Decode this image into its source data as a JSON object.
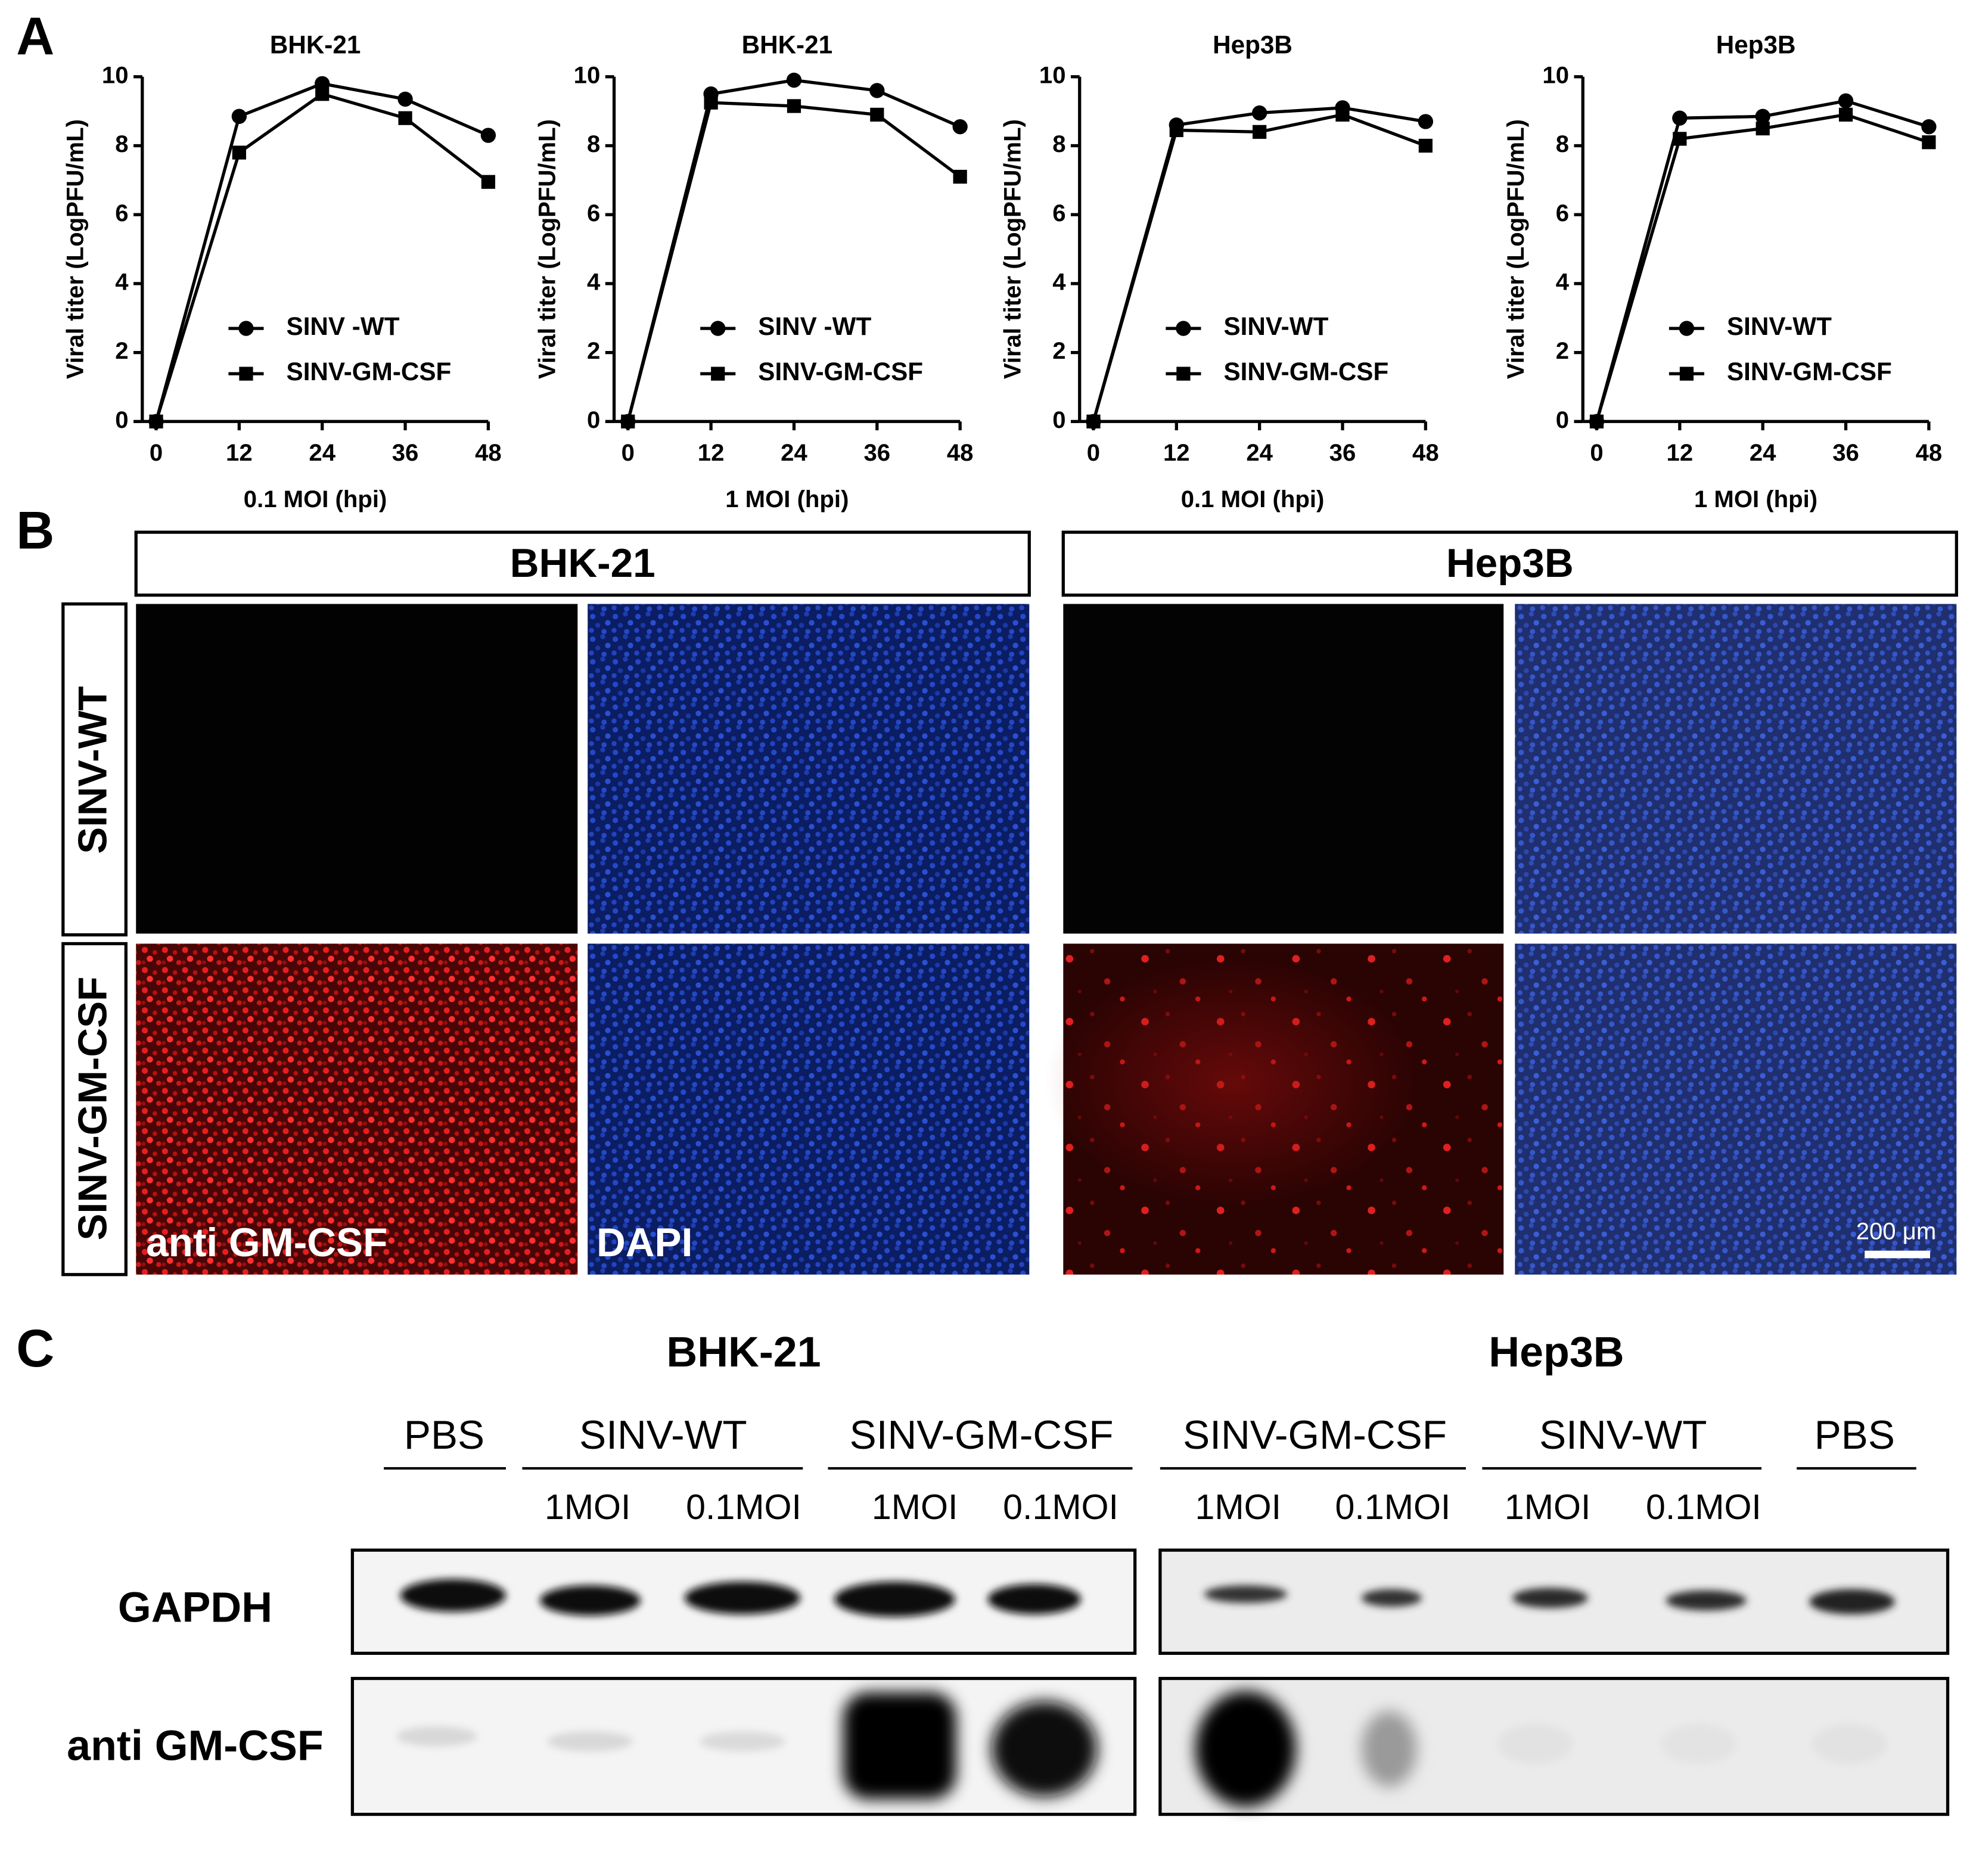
{
  "panel_labels": [
    "A",
    "B",
    "C"
  ],
  "chart_data": [
    {
      "type": "line",
      "title": "BHK-21",
      "xlabel": "0.1 MOI (hpi)",
      "ylabel": "Viral titer (LogPFU/mL)",
      "x": [
        0,
        12,
        24,
        36,
        48
      ],
      "xlim": [
        -2,
        48
      ],
      "xticks": [
        0,
        12,
        24,
        36,
        48
      ],
      "ylim": [
        0,
        10
      ],
      "yticks": [
        0,
        2,
        4,
        6,
        8,
        10
      ],
      "legend": "lower center",
      "series": [
        {
          "name": "SINV -WT",
          "color": "#000000",
          "marker": "circle",
          "values": [
            0,
            8.85,
            9.8,
            9.35,
            8.3
          ]
        },
        {
          "name": "SINV-GM-CSF",
          "color": "#000000",
          "marker": "square",
          "values": [
            0,
            7.8,
            9.5,
            8.8,
            6.95
          ]
        }
      ]
    },
    {
      "type": "line",
      "title": "BHK-21",
      "xlabel": "1 MOI (hpi)",
      "ylabel": "Viral titer (LogPFU/mL)",
      "x": [
        0,
        12,
        24,
        36,
        48
      ],
      "xlim": [
        -2,
        48
      ],
      "xticks": [
        0,
        12,
        24,
        36,
        48
      ],
      "ylim": [
        0,
        10
      ],
      "yticks": [
        0,
        2,
        4,
        6,
        8,
        10
      ],
      "legend": "lower center",
      "series": [
        {
          "name": "SINV -WT",
          "color": "#000000",
          "marker": "circle",
          "values": [
            0,
            9.5,
            9.9,
            9.6,
            8.55
          ]
        },
        {
          "name": "SINV-GM-CSF",
          "color": "#000000",
          "marker": "square",
          "values": [
            0,
            9.25,
            9.15,
            8.9,
            7.1
          ]
        }
      ]
    },
    {
      "type": "line",
      "title": "Hep3B",
      "xlabel": "0.1 MOI (hpi)",
      "ylabel": "Viral titer (LogPFU/mL)",
      "x": [
        0,
        12,
        24,
        36,
        48
      ],
      "xlim": [
        -2,
        48
      ],
      "xticks": [
        0,
        12,
        24,
        36,
        48
      ],
      "ylim": [
        0,
        10
      ],
      "yticks": [
        0,
        2,
        4,
        6,
        8,
        10
      ],
      "legend": "lower center",
      "series": [
        {
          "name": "SINV-WT",
          "color": "#000000",
          "marker": "circle",
          "values": [
            0,
            8.6,
            8.95,
            9.1,
            8.7
          ]
        },
        {
          "name": "SINV-GM-CSF",
          "color": "#000000",
          "marker": "square",
          "values": [
            0,
            8.45,
            8.4,
            8.9,
            8.0
          ]
        }
      ]
    },
    {
      "type": "line",
      "title": "Hep3B",
      "xlabel": "1 MOI (hpi)",
      "ylabel": "Viral titer (LogPFU/mL)",
      "x": [
        0,
        12,
        24,
        36,
        48
      ],
      "xlim": [
        -2,
        48
      ],
      "xticks": [
        0,
        12,
        24,
        36,
        48
      ],
      "ylim": [
        0,
        10
      ],
      "yticks": [
        0,
        2,
        4,
        6,
        8,
        10
      ],
      "legend": "lower center",
      "series": [
        {
          "name": "SINV-WT",
          "color": "#000000",
          "marker": "circle",
          "values": [
            0,
            8.8,
            8.85,
            9.3,
            8.55
          ]
        },
        {
          "name": "SINV-GM-CSF",
          "color": "#000000",
          "marker": "square",
          "values": [
            0,
            8.2,
            8.5,
            8.9,
            8.1
          ]
        }
      ]
    }
  ],
  "panel_b": {
    "columns": [
      "BHK-21",
      "Hep3B"
    ],
    "rows": [
      "SINV-WT",
      "SINV-GM-CSF"
    ],
    "channels": [
      "anti GM-CSF",
      "DAPI"
    ],
    "scale_bar": "200 μm"
  },
  "panel_c": {
    "groups": [
      {
        "title": "BHK-21",
        "conditions": [
          {
            "name": "PBS"
          },
          {
            "name": "SINV-WT",
            "doses": [
              "1MOI",
              "0.1MOI"
            ]
          },
          {
            "name": "SINV-GM-CSF",
            "doses": [
              "1MOI",
              "0.1MOI"
            ]
          }
        ]
      },
      {
        "title": "Hep3B",
        "conditions": [
          {
            "name": "SINV-GM-CSF",
            "doses": [
              "1MOI",
              "0.1MOI"
            ]
          },
          {
            "name": "SINV-WT",
            "doses": [
              "1MOI",
              "0.1MOI"
            ]
          },
          {
            "name": "PBS"
          }
        ]
      }
    ],
    "rows": [
      "GAPDH",
      "anti GM-CSF"
    ]
  }
}
